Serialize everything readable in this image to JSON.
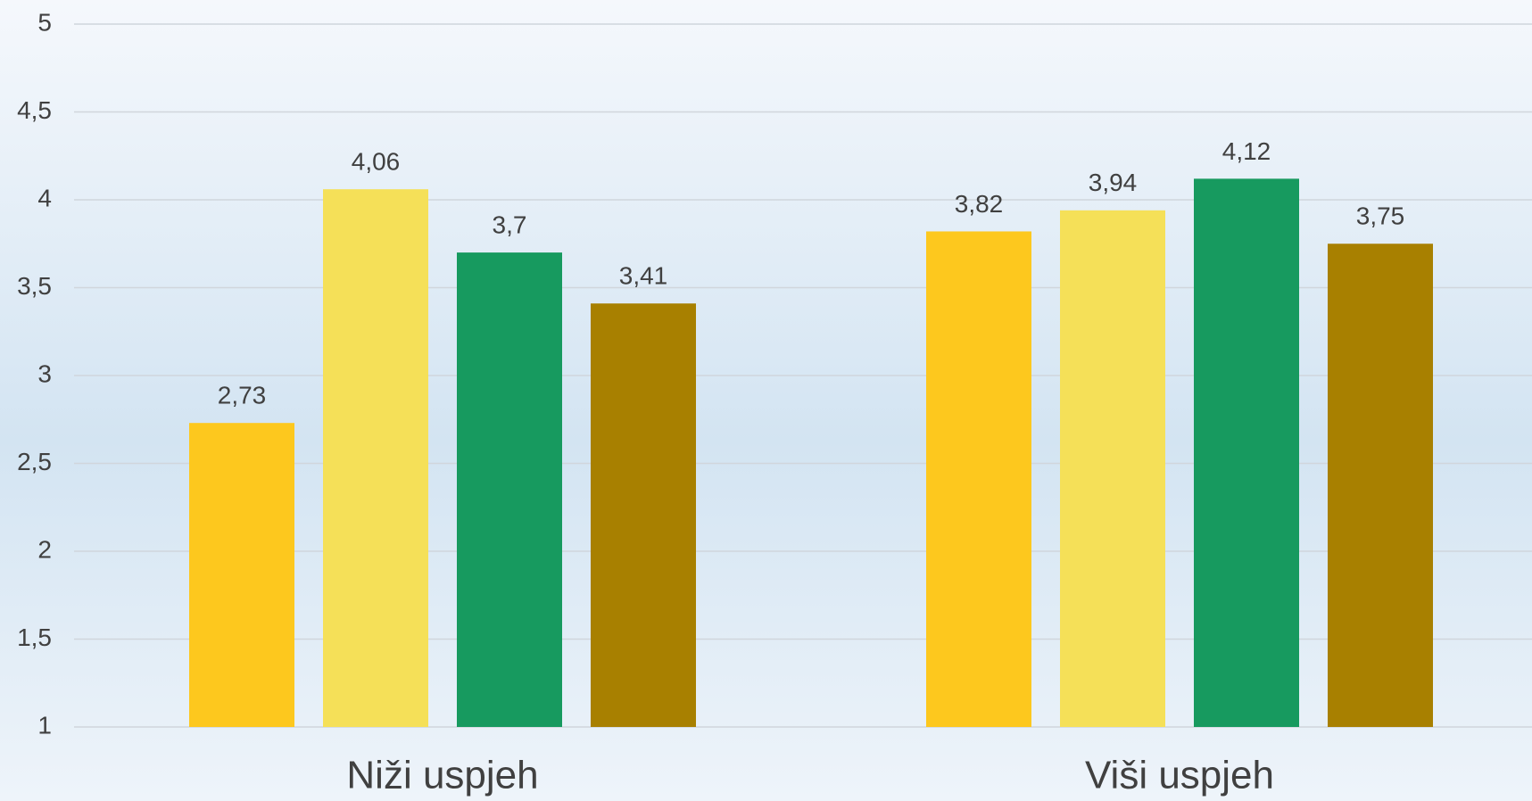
{
  "chart_data": {
    "type": "bar",
    "categories": [
      "Niži uspjeh",
      "Viši uspjeh"
    ],
    "series": [
      {
        "color": "#fdc81e",
        "values": [
          2.73,
          3.82
        ],
        "value_labels": [
          "2,73",
          "3,82"
        ]
      },
      {
        "color": "#f5e058",
        "values": [
          4.06,
          3.94
        ],
        "value_labels": [
          "4,06",
          "3,94"
        ]
      },
      {
        "color": "#179a5f",
        "values": [
          3.7,
          4.12
        ],
        "value_labels": [
          "3,7",
          "4,12"
        ]
      },
      {
        "color": "#a88000",
        "values": [
          3.41,
          3.75
        ],
        "value_labels": [
          "3,41",
          "3,75"
        ]
      }
    ],
    "ylim": [
      1,
      5
    ],
    "yticks": [
      1,
      {
        "value": 1.5,
        "label": "1,5"
      },
      2,
      {
        "value": 2.5,
        "label": "2,5"
      },
      3,
      {
        "value": 3.5,
        "label": "3,5"
      },
      4,
      {
        "value": 4.5,
        "label": "4,5"
      },
      5
    ],
    "grid": true
  }
}
